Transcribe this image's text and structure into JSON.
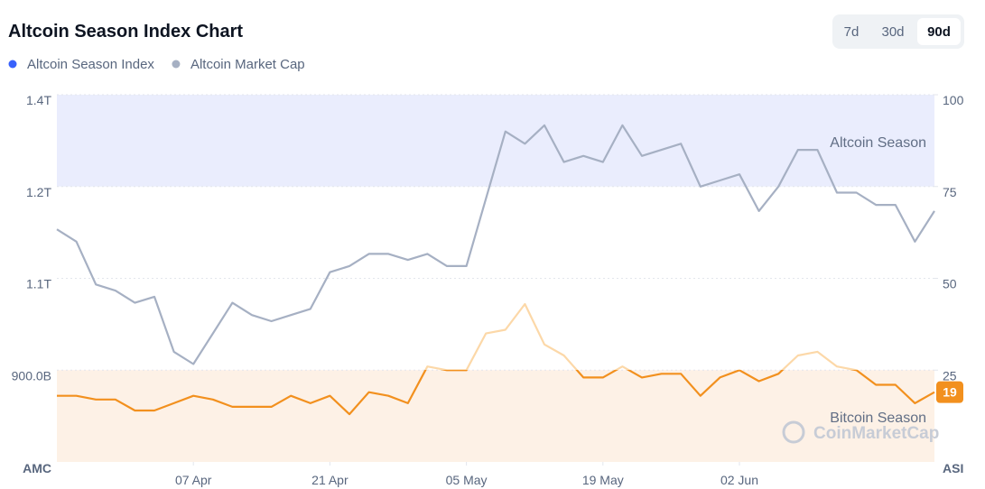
{
  "chart_data": {
    "type": "line",
    "title": "Altcoin Season Index Chart",
    "range_buttons": [
      "7d",
      "30d",
      "90d"
    ],
    "active_range": 2,
    "x": [
      0,
      2,
      4,
      6,
      8,
      10,
      12,
      14,
      16,
      18,
      20,
      22,
      24,
      26,
      28,
      30,
      32,
      34,
      36,
      38,
      40,
      42,
      44,
      46,
      48,
      50,
      52,
      54,
      56,
      58,
      60,
      62,
      64,
      66,
      68,
      70,
      72,
      74,
      76,
      78,
      80,
      82,
      84,
      86,
      88,
      90
    ],
    "xlim": [
      0,
      90
    ],
    "xticks": [
      {
        "value": 14,
        "label": "07 Apr"
      },
      {
        "value": 28,
        "label": "21 Apr"
      },
      {
        "value": 42,
        "label": "05 May"
      },
      {
        "value": 56,
        "label": "19 May"
      },
      {
        "value": 70,
        "label": "02 Jun"
      }
    ],
    "ylabel": "AMC",
    "y2label": "ASI",
    "ylim": [
      0.75,
      1.35
    ],
    "yticks": [
      {
        "value": 1.35,
        "label": "1.4T"
      },
      {
        "value": 1.2,
        "label": "1.2T"
      },
      {
        "value": 1.05,
        "label": "1.1T"
      },
      {
        "value": 0.9,
        "label": "900.0B"
      }
    ],
    "y2lim": [
      0,
      100
    ],
    "y2ticks": [
      100,
      75,
      50,
      25
    ],
    "grid": true,
    "bands": [
      {
        "label": "Altcoin Season",
        "from": 75,
        "to": 100,
        "color": "#eaedfd"
      },
      {
        "label": "Bitcoin Season",
        "from": 0,
        "to": 25,
        "color": "#fdf1e6"
      }
    ],
    "series": [
      {
        "name": "Altcoin Season Index",
        "color": "#3861fb",
        "axis": "y2",
        "line_color_low": "#f2901e",
        "line_color_high": "#fcd8a8",
        "values": [
          18,
          18,
          17,
          17,
          14,
          14,
          16,
          18,
          17,
          15,
          15,
          15,
          18,
          16,
          18,
          13,
          19,
          18,
          16,
          26,
          25,
          25,
          35,
          36,
          43,
          32,
          29,
          23,
          23,
          26,
          23,
          24,
          24,
          18,
          23,
          25,
          22,
          24,
          29,
          30,
          26,
          25,
          21,
          21,
          16,
          19
        ],
        "value_labels": {
          "45": "19"
        }
      },
      {
        "name": "Altcoin Market Cap",
        "color": "#a6b0c3",
        "axis": "y",
        "values": [
          1.13,
          1.11,
          1.04,
          1.03,
          1.01,
          1.02,
          0.93,
          0.91,
          0.96,
          1.01,
          0.99,
          0.98,
          0.99,
          1.0,
          1.06,
          1.07,
          1.09,
          1.09,
          1.08,
          1.09,
          1.07,
          1.07,
          1.18,
          1.29,
          1.27,
          1.3,
          1.24,
          1.25,
          1.24,
          1.3,
          1.25,
          1.26,
          1.27,
          1.2,
          1.21,
          1.22,
          1.16,
          1.2,
          1.26,
          1.26,
          1.19,
          1.19,
          1.17,
          1.17,
          1.11,
          1.16
        ]
      }
    ]
  },
  "watermark": "CoinMarketCap"
}
